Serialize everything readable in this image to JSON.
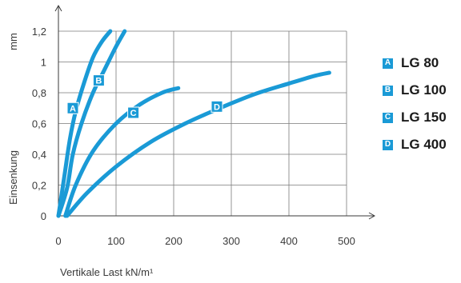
{
  "chart_data": {
    "type": "line",
    "xlabel": "Vertikale Last kN/m¹",
    "ylabel": "Einsenkung",
    "yunit": "mm",
    "xlim": [
      0,
      500
    ],
    "ylim": [
      0,
      1.2
    ],
    "x_ticks": [
      0,
      100,
      200,
      300,
      400,
      500
    ],
    "y_ticks": [
      "0",
      "0,2",
      "0,4",
      "0,6",
      "0,8",
      "1",
      "1,2"
    ],
    "grid": true,
    "legend_position": "right",
    "series": [
      {
        "key": "A",
        "name": "LG 80",
        "x": [
          0,
          10,
          20,
          30,
          45,
          60,
          75,
          90
        ],
        "y": [
          0,
          0.25,
          0.5,
          0.68,
          0.87,
          1.03,
          1.13,
          1.2
        ]
      },
      {
        "key": "B",
        "name": "LG 100",
        "x": [
          0,
          15,
          25,
          40,
          60,
          80,
          100,
          115
        ],
        "y": [
          0,
          0.18,
          0.4,
          0.6,
          0.8,
          0.95,
          1.1,
          1.2
        ]
      },
      {
        "key": "C",
        "name": "LG 150",
        "x": [
          12,
          30,
          60,
          100,
          140,
          180,
          208
        ],
        "y": [
          0,
          0.2,
          0.42,
          0.6,
          0.72,
          0.8,
          0.83
        ]
      },
      {
        "key": "D",
        "name": "LG 400",
        "x": [
          15,
          50,
          100,
          160,
          220,
          280,
          340,
          400,
          445,
          470
        ],
        "y": [
          0,
          0.15,
          0.32,
          0.48,
          0.6,
          0.7,
          0.79,
          0.86,
          0.91,
          0.93
        ]
      }
    ],
    "label_positions": [
      {
        "key": "A",
        "x": 25,
        "y": 0.7
      },
      {
        "key": "B",
        "x": 70,
        "y": 0.88
      },
      {
        "key": "C",
        "x": 130,
        "y": 0.67
      },
      {
        "key": "D",
        "x": 275,
        "y": 0.71
      }
    ],
    "colors": {
      "line": "#1a9ad6",
      "grid": "#7a7a7a",
      "axis": "#3a3a3a"
    }
  }
}
